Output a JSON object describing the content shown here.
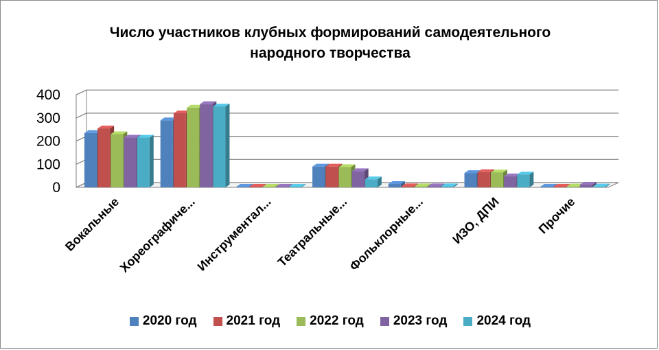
{
  "chart_data": {
    "type": "bar",
    "title": "Число участников клубных формирований самодеятельного народного творчества",
    "title_lines": [
      "Число участников клубных формирований самодеятельного",
      "народного творчества"
    ],
    "categories": [
      "Вокальные",
      "Хореографиче...",
      "Инструментал...",
      "Театральные...",
      "Фольклорные...",
      "ИЗО, ДПИ",
      "Прочие"
    ],
    "series": [
      {
        "name": "2020 год",
        "color": "#4F81BD",
        "values": [
          235,
          290,
          3,
          90,
          15,
          62,
          3
        ]
      },
      {
        "name": "2021 год",
        "color": "#C0504D",
        "values": [
          255,
          320,
          3,
          90,
          5,
          66,
          3
        ]
      },
      {
        "name": "2022 год",
        "color": "#9BBB59",
        "values": [
          230,
          345,
          3,
          88,
          5,
          65,
          4
        ]
      },
      {
        "name": "2023 год",
        "color": "#8064A2",
        "values": [
          215,
          360,
          3,
          70,
          5,
          48,
          12
        ]
      },
      {
        "name": "2024 год",
        "color": "#4BACC6",
        "values": [
          215,
          350,
          3,
          35,
          5,
          56,
          4
        ]
      }
    ],
    "yticks": [
      0,
      100,
      200,
      300,
      400
    ],
    "ylim": [
      0,
      400
    ],
    "grid": true,
    "legend_position": "bottom",
    "style": "3d-clustered-column"
  }
}
